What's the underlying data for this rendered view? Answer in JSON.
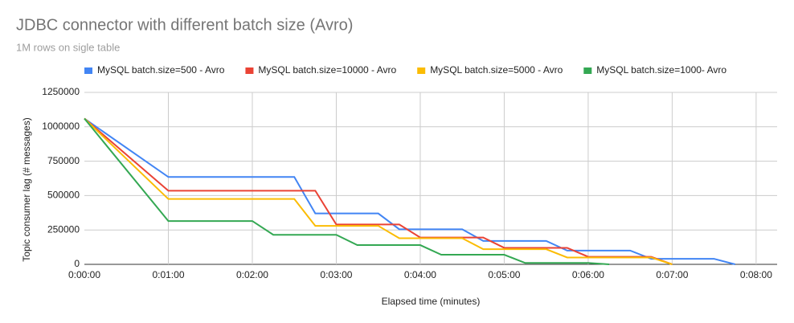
{
  "chart_data": {
    "type": "line",
    "title": "JDBC connector with different batch size (Avro)",
    "subtitle": "1M rows on sigle table",
    "x_label": "Elapsed time (minutes)",
    "y_label": "Topic consumer lag (# messages)",
    "xlim": [
      0,
      8.25
    ],
    "xticks": [
      {
        "value": 0,
        "label": "0:00:00"
      },
      {
        "value": 1,
        "label": "0:01:00"
      },
      {
        "value": 2,
        "label": "0:02:00"
      },
      {
        "value": 3,
        "label": "0:03:00"
      },
      {
        "value": 4,
        "label": "0:04:00"
      },
      {
        "value": 5,
        "label": "0:05:00"
      },
      {
        "value": 6,
        "label": "0:06:00"
      },
      {
        "value": 7,
        "label": "0:07:00"
      },
      {
        "value": 8,
        "label": "0:08:00"
      }
    ],
    "ylim": [
      0,
      1250000
    ],
    "yticks": [
      0,
      250000,
      500000,
      750000,
      1000000,
      1250000
    ],
    "grid": true,
    "legend": "top",
    "series": [
      {
        "name": "MySQL batch.size=500 - Avro",
        "color": "#4285f4",
        "x": [
          0,
          1,
          2.5,
          2.75,
          3.5,
          3.75,
          4.5,
          4.75,
          5.5,
          5.75,
          6.5,
          6.75,
          7.5,
          7.75
        ],
        "values": [
          1060000,
          635000,
          635000,
          370000,
          370000,
          255000,
          255000,
          170000,
          170000,
          100000,
          100000,
          40000,
          40000,
          0
        ]
      },
      {
        "name": "MySQL batch.size=10000 - Avro",
        "color": "#ea4335",
        "x": [
          0,
          1,
          2.75,
          3,
          3.75,
          4,
          4.75,
          5,
          5.75,
          6,
          6.75,
          7
        ],
        "values": [
          1060000,
          535000,
          535000,
          290000,
          290000,
          195000,
          195000,
          120000,
          120000,
          55000,
          55000,
          0
        ]
      },
      {
        "name": "MySQL batch.size=5000 - Avro",
        "color": "#fbbc04",
        "x": [
          0,
          1,
          2.5,
          2.75,
          3.5,
          3.75,
          4.5,
          4.75,
          5.5,
          5.75,
          6.75,
          7
        ],
        "values": [
          1060000,
          475000,
          475000,
          280000,
          280000,
          190000,
          190000,
          110000,
          110000,
          50000,
          50000,
          0
        ]
      },
      {
        "name": "MySQL batch.size=1000- Avro",
        "color": "#34a853",
        "x": [
          0,
          1,
          2,
          2.25,
          3,
          3.25,
          4,
          4.25,
          5,
          5.25,
          6,
          6.25
        ],
        "values": [
          1060000,
          315000,
          315000,
          215000,
          215000,
          140000,
          140000,
          70000,
          70000,
          10000,
          10000,
          0
        ]
      }
    ]
  }
}
